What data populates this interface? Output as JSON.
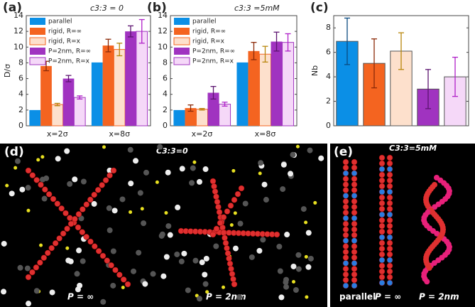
{
  "chart_data": [
    {
      "type": "bar",
      "panel_label": "(a)",
      "annotation": "c3:3 = 0",
      "ylabel": "D/σ",
      "categories": [
        "x=2σ",
        "x=8σ"
      ],
      "ylim": [
        0,
        14
      ],
      "yticks": [
        0,
        2,
        4,
        6,
        8,
        10,
        12,
        14
      ],
      "legend": "upper left",
      "series": [
        {
          "name": "parallel",
          "color": "#0b8fe6",
          "values": [
            2,
            8.05
          ]
        },
        {
          "name": "rigid, R=∞",
          "color": "#f46420",
          "error_color": "#8c2a08",
          "values": [
            7.6,
            10.2
          ],
          "errors": [
            0.6,
            0.8
          ]
        },
        {
          "name": "rigid, R=x",
          "color": "#fde0cc",
          "edgecolor": "#f46420",
          "error_color": "#b8860b",
          "values": [
            2.7,
            9.7
          ],
          "errors": [
            0.15,
            0.8
          ]
        },
        {
          "name": "P=2nm, R=∞",
          "color": "#a033c0",
          "error_color": "#5c1470",
          "values": [
            6.0,
            12.0
          ],
          "errors": [
            0.4,
            0.7
          ]
        },
        {
          "name": "P=2nm, R=x",
          "color": "#f5d8f8",
          "edgecolor": "#a033c0",
          "error_color": "#b020c8",
          "values": [
            3.6,
            12.0
          ],
          "errors": [
            0.2,
            1.5
          ]
        }
      ]
    },
    {
      "type": "bar",
      "panel_label": "(b)",
      "annotation": "c3:3 =5mM",
      "categories": [
        "x=2σ",
        "x=8σ"
      ],
      "ylim": [
        0,
        14
      ],
      "yticks": [
        0,
        2,
        4,
        6,
        8,
        10,
        12,
        14
      ],
      "legend": "upper left",
      "series": [
        {
          "name": "parallel",
          "color": "#0b8fe6",
          "values": [
            2,
            8.05
          ]
        },
        {
          "name": "rigid, R=∞",
          "color": "#f46420",
          "error_color": "#8c2a08",
          "values": [
            2.25,
            9.5
          ],
          "errors": [
            0.4,
            1.1
          ]
        },
        {
          "name": "rigid, R=x",
          "color": "#fde0cc",
          "edgecolor": "#f46420",
          "error_color": "#b8860b",
          "values": [
            2.1,
            9.1
          ],
          "errors": [
            0.1,
            1.0
          ]
        },
        {
          "name": "P=2nm, R=∞",
          "color": "#a033c0",
          "error_color": "#5c1470",
          "values": [
            4.2,
            10.7
          ],
          "errors": [
            0.8,
            1.2
          ]
        },
        {
          "name": "P=2nm, R=x",
          "color": "#f5d8f8",
          "edgecolor": "#a033c0",
          "error_color": "#b020c8",
          "values": [
            2.75,
            10.6
          ],
          "errors": [
            0.25,
            1.1
          ]
        }
      ]
    },
    {
      "type": "bar",
      "panel_label": "(c)",
      "ylabel": "Nb",
      "categories": [
        null,
        null,
        null,
        null,
        null
      ],
      "ylim": [
        0,
        9
      ],
      "yticks": [
        0,
        2,
        4,
        6,
        8
      ],
      "values": [
        6.9,
        5.1,
        6.1,
        3.0,
        4.0
      ],
      "errors": [
        1.9,
        2.0,
        1.5,
        1.6,
        1.6
      ],
      "colors": [
        "#0b8fe6",
        "#f46420",
        "#fde0cc",
        "#a033c0",
        "#f5d8f8"
      ],
      "edgecolors": [
        "#555555",
        "#555555",
        "#555555",
        "#555555",
        "#555555"
      ],
      "error_colors": [
        "#0a4a80",
        "#8c2a08",
        "#b8860b",
        "#5c1470",
        "#b020c8"
      ]
    }
  ],
  "images": [
    {
      "panel_label": "(d)",
      "annotation": "C3:3=0",
      "captions": [
        "P = ∞",
        "P = 2nm"
      ]
    },
    {
      "panel_label": "(e)",
      "annotation": "C3:3=5mM",
      "captions": [
        "parallel",
        "P = ∞",
        "P = 2nm"
      ]
    }
  ]
}
